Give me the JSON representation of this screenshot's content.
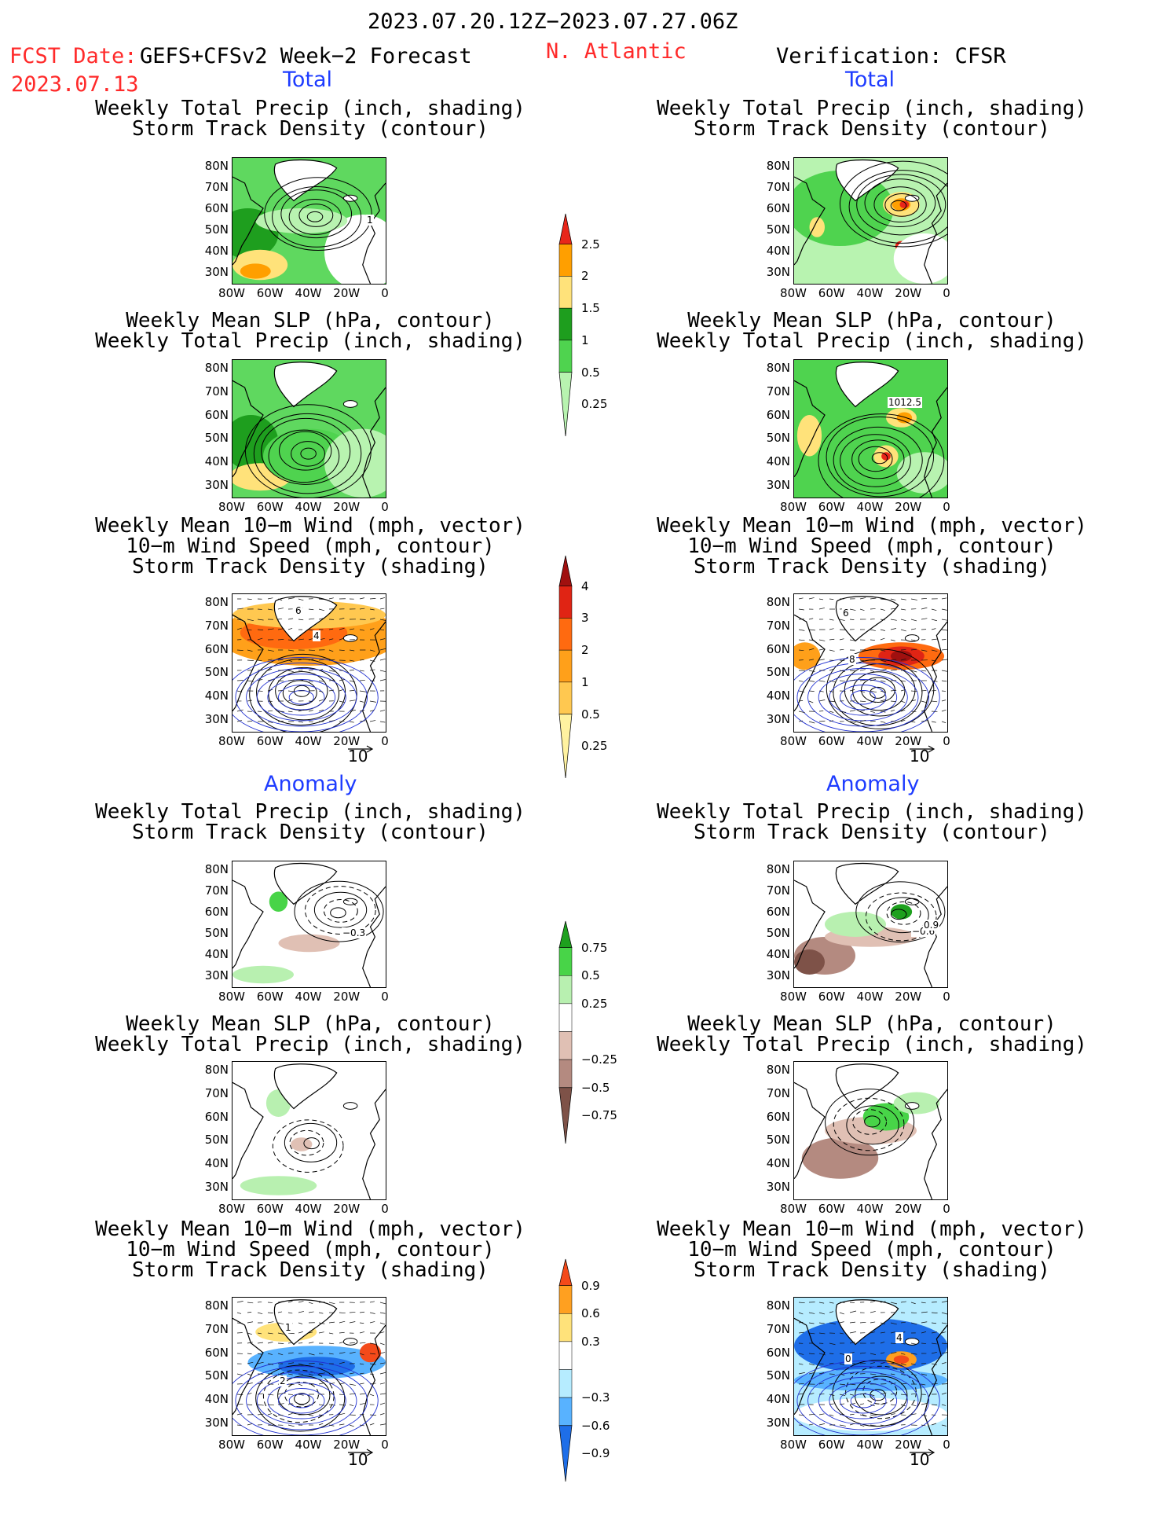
{
  "header": {
    "time_range": "2023.07.20.12Z−2023.07.27.06Z",
    "fcst_label": "FCST Date:",
    "fcst_date": "2023.07.13",
    "model": "GEFS+CFSv2 Week−2 Forecast",
    "region": "N. Atlantic",
    "verification": "Verification: CFSR"
  },
  "sections": {
    "total": "Total",
    "anomaly": "Anomaly"
  },
  "panel_titles": {
    "precip_track": [
      "Weekly Total Precip (inch, shading)",
      "Storm Track Density (contour)"
    ],
    "slp_precip": [
      "Weekly Mean SLP (hPa, contour)",
      "Weekly Total Precip (inch, shading)"
    ],
    "wind_track": [
      "Weekly Mean 10−m Wind (mph, vector)",
      "10−m Wind Speed (mph, contour)",
      "Storm Track Density (shading)"
    ]
  },
  "axes": {
    "lat_ticks": [
      "80N",
      "70N",
      "60N",
      "50N",
      "40N",
      "30N"
    ],
    "lon_ticks": [
      "80W",
      "60W",
      "40W",
      "20W",
      "0"
    ],
    "vector_ref": "10"
  },
  "colorbars": {
    "precip_total": {
      "labels": [
        "2.5",
        "2",
        "1.5",
        "1",
        "0.5",
        "0.25"
      ],
      "colors": [
        "#e8261a",
        "#ff9f00",
        "#ffe27a",
        "#1e9e1e",
        "#4fd34f",
        "#b8f3b0"
      ]
    },
    "track_total": {
      "labels": [
        "4",
        "3",
        "2",
        "1",
        "0.5",
        "0.25"
      ],
      "colors": [
        "#a0100f",
        "#e02414",
        "#ff6a10",
        "#ffa01a",
        "#ffc850",
        "#fff2a0"
      ]
    },
    "precip_anom": {
      "labels": [
        "0.75",
        "0.5",
        "0.25",
        "−0.25",
        "−0.5",
        "−0.75"
      ],
      "colors": [
        "#1ea01e",
        "#48d448",
        "#b8f0b0",
        "#ffffff",
        "#e0c0b4",
        "#b48a80",
        "#7e5248"
      ]
    },
    "track_anom": {
      "labels": [
        "0.9",
        "0.6",
        "0.3",
        "−0.3",
        "−0.6",
        "−0.9"
      ],
      "colors": [
        "#f44a1a",
        "#ffa020",
        "#ffe27a",
        "#ffffff",
        "#b6ecff",
        "#58b2ff",
        "#1e6ee8"
      ]
    }
  },
  "contour_labels": {
    "fcst_track_total": "1",
    "verif_slp_total": "1012.5",
    "fcst_wind_total": [
      "6",
      "4"
    ],
    "verif_wind_total": [
      "6",
      "8"
    ],
    "fcst_track_anom": "−0.3",
    "verif_track_anom": [
      "−0.6",
      "0.9"
    ],
    "fcst_wind_anom": [
      "1",
      "2"
    ],
    "verif_wind_anom": [
      "4",
      "0"
    ]
  },
  "palette": {
    "title_red": "#ff2a2a",
    "section_blue": "#1e3cff",
    "wind_blue": "#2030d0"
  }
}
